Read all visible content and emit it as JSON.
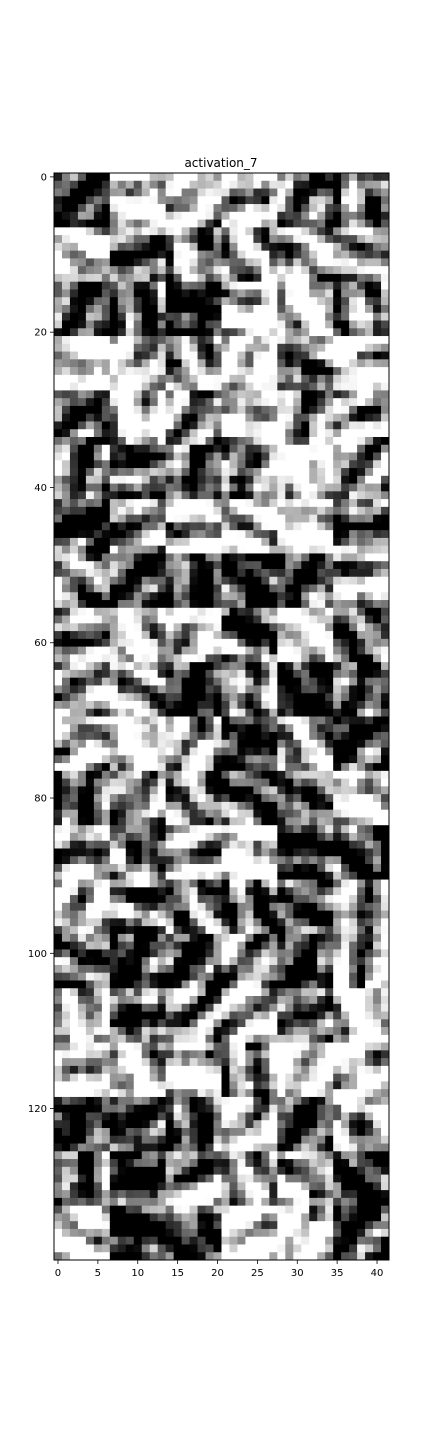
{
  "chart_data": {
    "type": "heatmap",
    "title": "activation_7",
    "colormap": "gray",
    "columns": 42,
    "rows": 140,
    "xlim": [
      -0.5,
      41.5
    ],
    "ylim": [
      139.5,
      -0.5
    ],
    "x_ticks": [
      0,
      5,
      10,
      15,
      20,
      25,
      30,
      35,
      40
    ],
    "x_tick_labels": [
      "0",
      "5",
      "10",
      "15",
      "20",
      "25",
      "30",
      "35",
      "40"
    ],
    "y_ticks": [
      0,
      20,
      40,
      60,
      80,
      100,
      120
    ],
    "y_tick_labels": [
      "0",
      "20",
      "40",
      "60",
      "80",
      "100",
      "120"
    ],
    "grid": false,
    "legend": "none",
    "tile_grid": {
      "tile_columns": 6,
      "tile_rows": 20,
      "tile_size": 7
    },
    "value_range": [
      0,
      1
    ]
  }
}
